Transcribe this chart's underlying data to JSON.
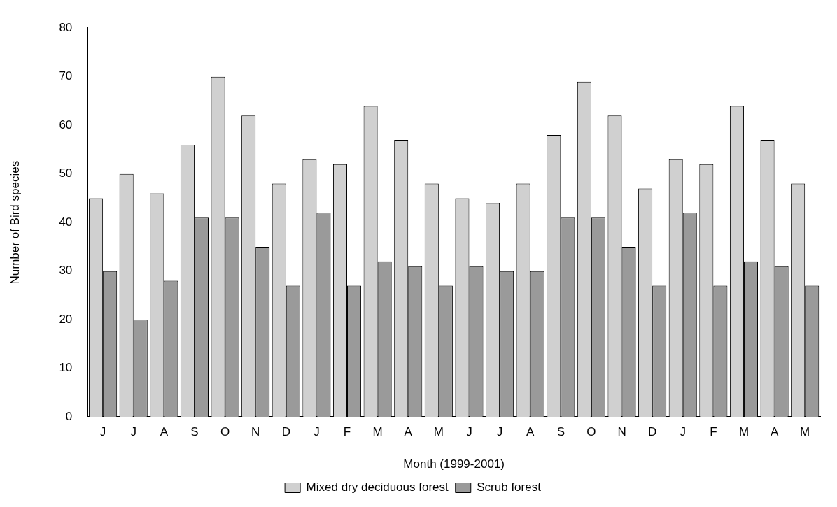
{
  "chart_data": {
    "type": "bar",
    "xlabel": "Month (1999-2001)",
    "ylabel": "Number of Bird species",
    "categories": [
      "J",
      "J",
      "A",
      "S",
      "O",
      "N",
      "D",
      "J",
      "F",
      "M",
      "A",
      "M",
      "J",
      "J",
      "A",
      "S",
      "O",
      "N",
      "D",
      "J",
      "F",
      "M",
      "A",
      "M"
    ],
    "series": [
      {
        "name": "Mixed dry deciduous forest",
        "color": "#d0d0d0",
        "values": [
          45,
          50,
          46,
          56,
          70,
          62,
          48,
          53,
          52,
          64,
          57,
          48,
          45,
          44,
          48,
          58,
          69,
          62,
          47,
          53,
          52,
          64,
          57,
          48
        ]
      },
      {
        "name": "Scrub forest",
        "color": "#9a9a9a",
        "values": [
          30,
          20,
          28,
          41,
          41,
          35,
          27,
          42,
          27,
          32,
          31,
          27,
          31,
          30,
          30,
          41,
          41,
          35,
          27,
          42,
          27,
          32,
          31,
          27
        ]
      }
    ],
    "ylim": [
      0,
      80
    ],
    "yticks": [
      0,
      10,
      20,
      30,
      40,
      50,
      60,
      70,
      80
    ],
    "grid": false,
    "legend": "bottom"
  }
}
